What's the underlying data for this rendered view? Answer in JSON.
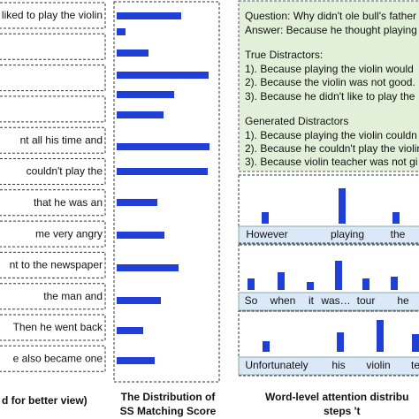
{
  "sentences": [
    "liked to play the violin",
    "nt all his time and",
    "couldn't play the",
    "that he was an",
    "me very angry",
    "nt to the newspaper",
    "the man and",
    "Then he went back",
    "e also became one"
  ],
  "left_caption": "d for better view)",
  "chart_data": {
    "type": "bar",
    "orientation": "horizontal",
    "title": [
      "The Distribution of",
      "SS Matching Score"
    ],
    "values": [
      73,
      10,
      36,
      104,
      65,
      53,
      105,
      103,
      46,
      54,
      70,
      50,
      30,
      43
    ],
    "color": "#1f3fd6"
  },
  "qa": {
    "question": "Question: Why didn't ole bull's father",
    "answer": "Answer: Because he thought playing",
    "true_heading": "True Distractors:",
    "true_distractors": [
      "1). Because playing the violin would",
      "2). Because the violin was not good.",
      "3). Because he didn't like to play the"
    ],
    "generated_heading": "Generated Distractors",
    "generated_distractors": [
      "1). Because playing the violin couldn",
      "2). Because he couldn't play the violin",
      "3). Because violin teacher was not gi"
    ]
  },
  "attention": [
    {
      "words": [
        "However",
        "playing",
        "the"
      ],
      "weights": [
        13,
        40,
        13
      ]
    },
    {
      "words": [
        "So",
        "when",
        "it",
        "was…",
        "tour",
        "he"
      ],
      "weights": [
        13,
        20,
        9,
        33,
        13,
        15
      ]
    },
    {
      "words": [
        "Unfortunately",
        "his",
        "violin",
        "te"
      ],
      "weights": [
        12,
        22,
        36,
        20
      ]
    }
  ],
  "right_caption": [
    "Word-level attention distribu",
    "steps 't"
  ]
}
